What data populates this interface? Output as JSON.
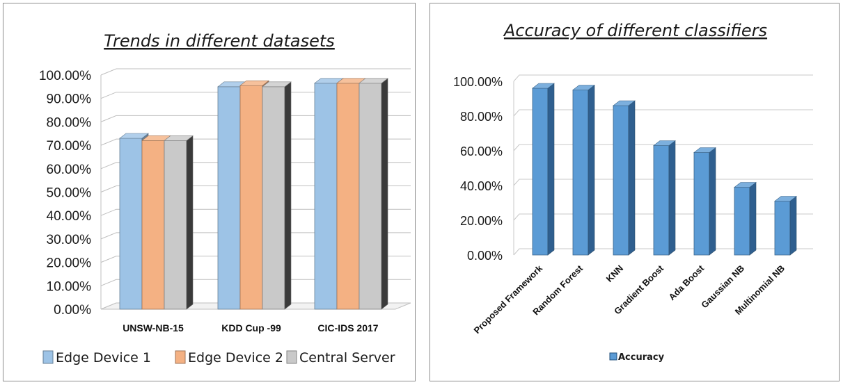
{
  "chart_data": [
    {
      "type": "bar",
      "title": "Trends in different datasets",
      "categories": [
        "UNSW-NB-15",
        "KDD Cup -99",
        "CIC-IDS 2017"
      ],
      "series": [
        {
          "name": "Edge Device 1",
          "values": [
            0.73,
            0.95,
            0.965
          ],
          "color": "#9dc3e6"
        },
        {
          "name": "Edge Device 2",
          "values": [
            0.72,
            0.955,
            0.965
          ],
          "color": "#f4b183"
        },
        {
          "name": "Central Server",
          "values": [
            0.72,
            0.95,
            0.965
          ],
          "color": "#c9c9c9"
        }
      ],
      "ylim": [
        0,
        1.0
      ],
      "yticks": [
        "0.00%",
        "10.00%",
        "20.00%",
        "30.00%",
        "40.00%",
        "50.00%",
        "60.00%",
        "70.00%",
        "80.00%",
        "90.00%",
        "100.00%"
      ],
      "grid": true,
      "legend_position": "bottom"
    },
    {
      "type": "bar",
      "title": "Accuracy of different classifiers",
      "categories": [
        "Proposed Framework",
        "Random Forest",
        "KNN",
        "Gradient Boost",
        "Ada Boost",
        "Gaussian NB",
        "Multinomial NB"
      ],
      "series": [
        {
          "name": "Accuracy",
          "values": [
            0.96,
            0.95,
            0.86,
            0.63,
            0.59,
            0.39,
            0.31
          ],
          "color": "#5b9bd5"
        }
      ],
      "ylim": [
        0,
        1.0
      ],
      "yticks": [
        "0.00%",
        "20.00%",
        "40.00%",
        "60.00%",
        "80.00%",
        "100.00%"
      ],
      "grid": true,
      "legend_position": "bottom"
    }
  ]
}
